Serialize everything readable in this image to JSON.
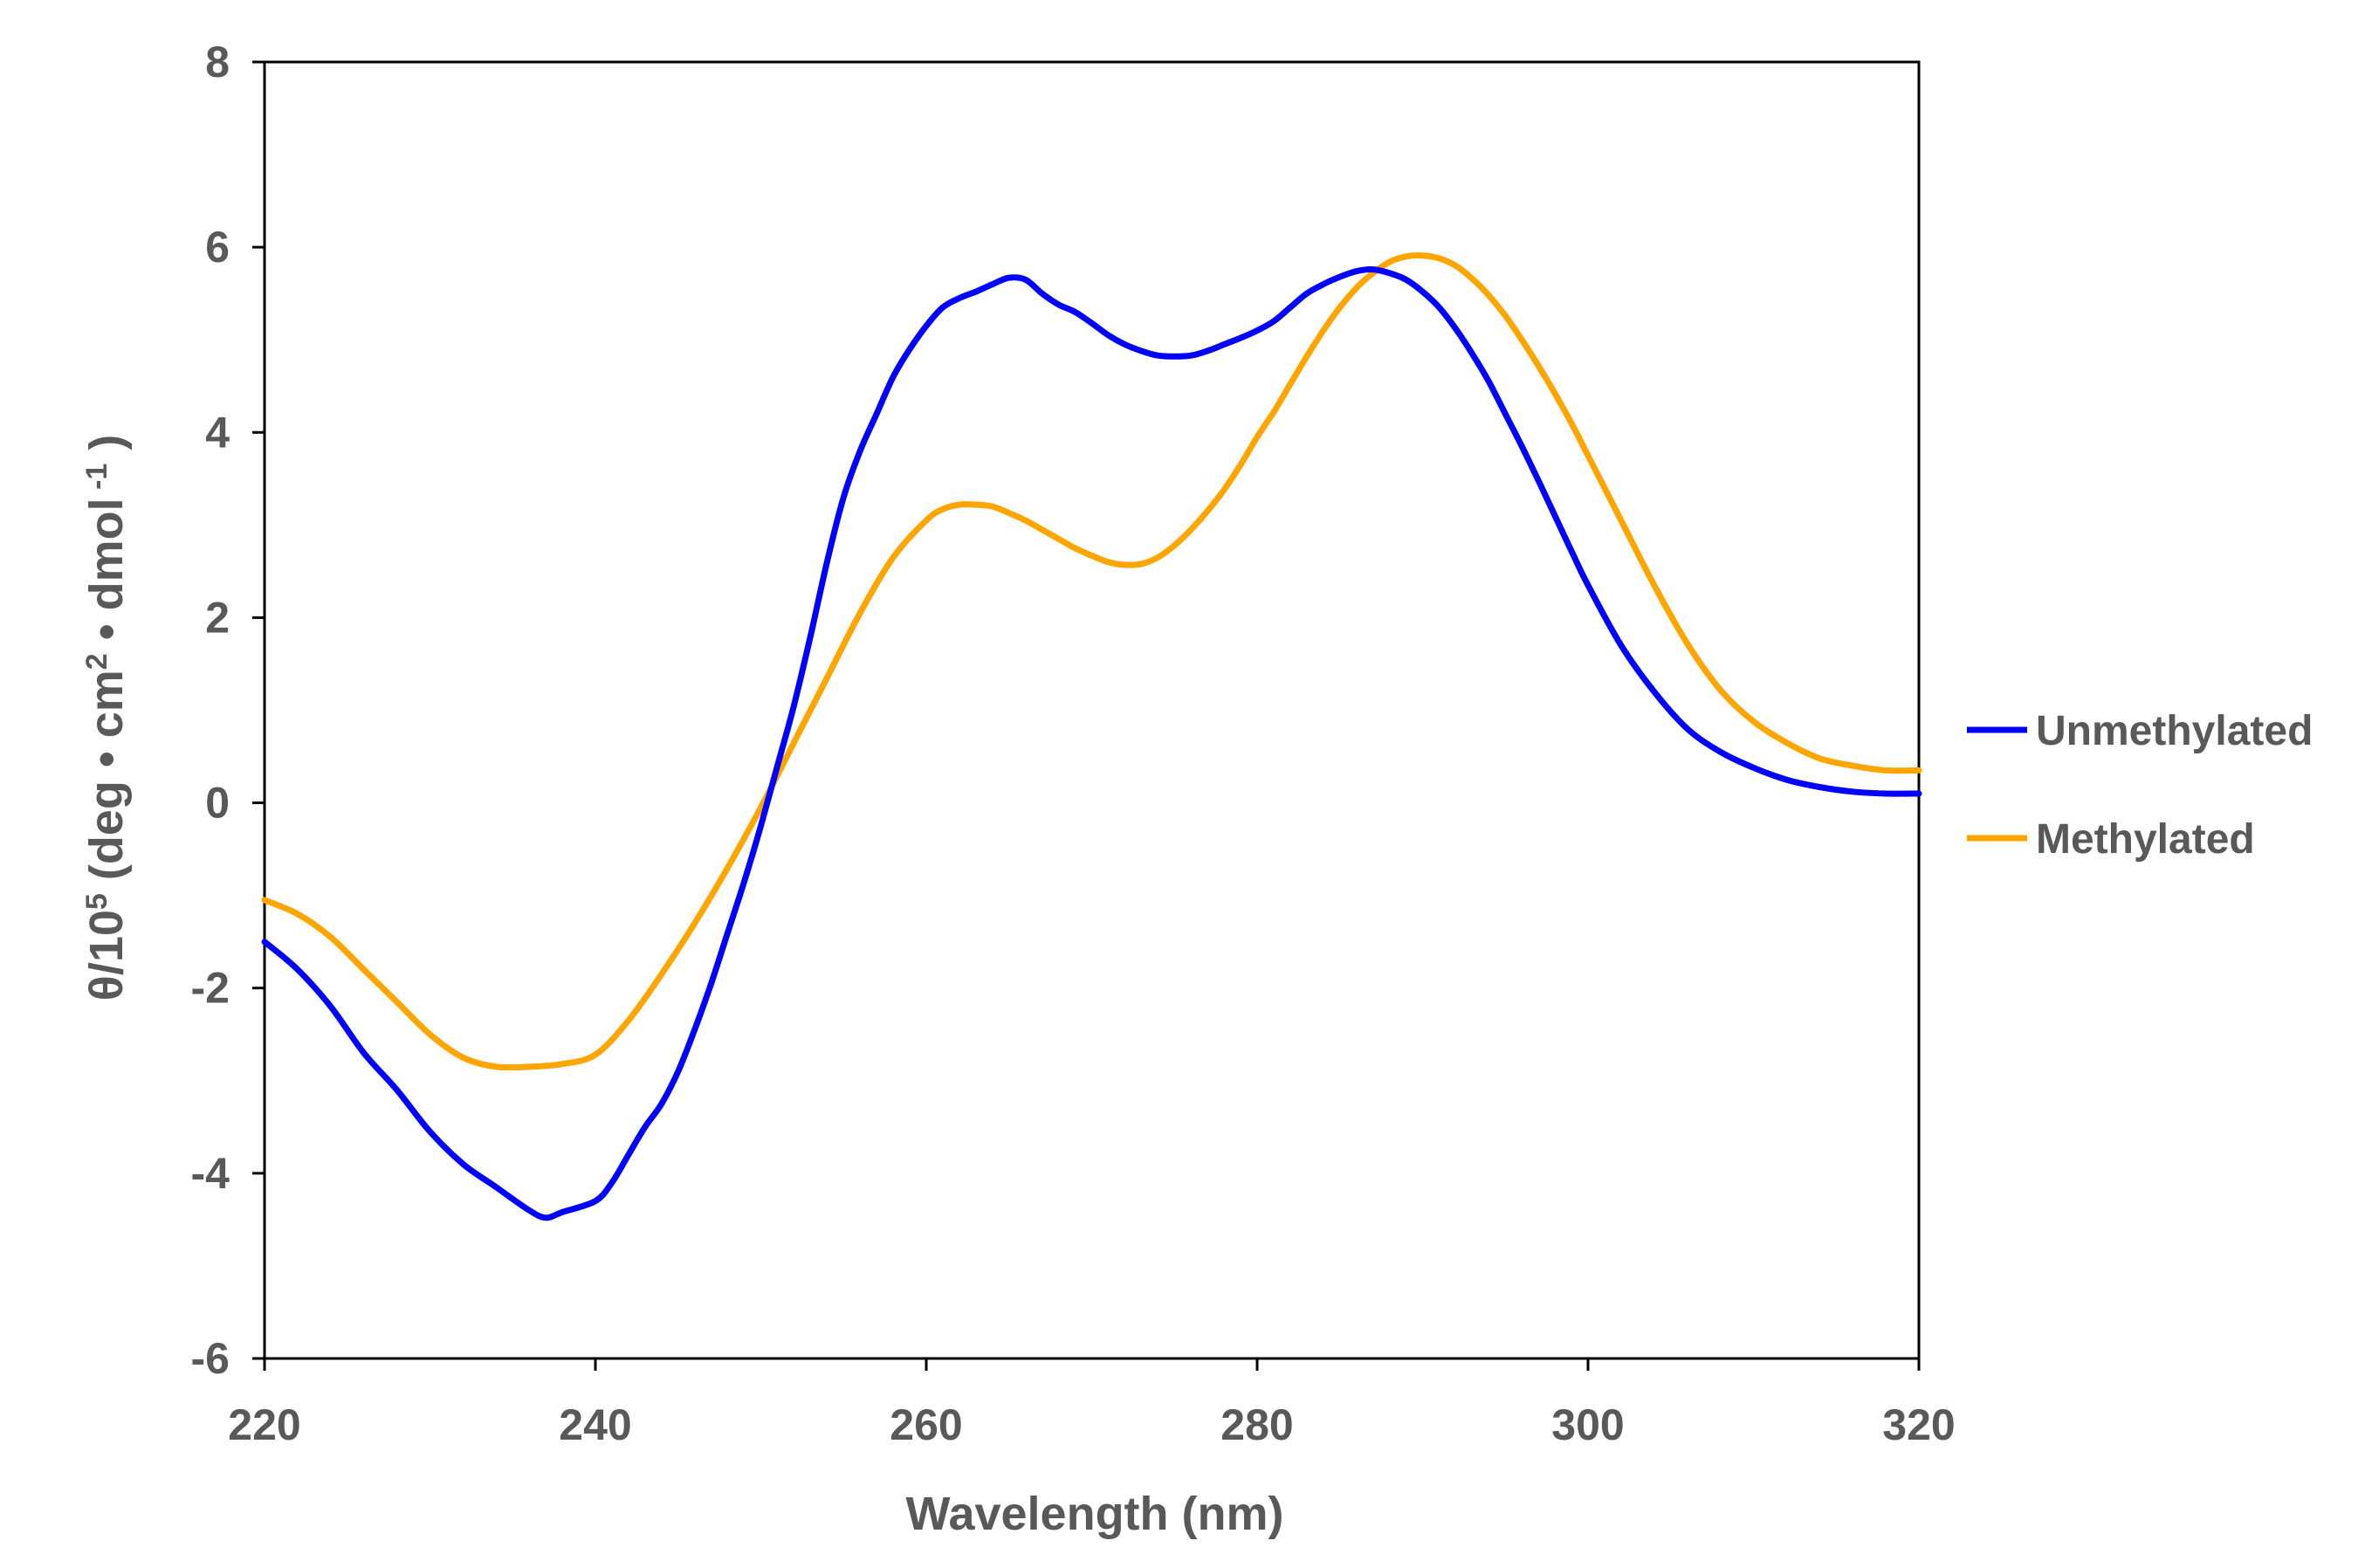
{
  "chart_data": {
    "type": "line",
    "xlabel": "Wavelength (nm)",
    "ylabel": {
      "parts": [
        "θ/10",
        "5",
        " (deg • cm",
        "2",
        " • dmol",
        " -1",
        " )"
      ]
    },
    "xlim": [
      220,
      320
    ],
    "ylim": [
      -6,
      8
    ],
    "xticks": [
      "220",
      "240",
      "260",
      "280",
      "300",
      "320"
    ],
    "yticks": [
      "-6",
      "-4",
      "-2",
      "0",
      "2",
      "4",
      "6",
      "8"
    ],
    "grid": false,
    "legend_position": "right",
    "series": [
      {
        "name": "Unmethylated",
        "color": "#0000FF",
        "x": [
          220,
          222,
          224,
          226,
          228,
          230,
          232,
          234,
          236,
          237,
          238,
          240,
          241,
          242,
          243,
          244,
          245,
          246,
          247,
          248,
          249,
          250,
          251,
          252,
          253,
          254,
          255,
          256,
          257,
          258,
          259,
          260,
          261,
          262,
          263,
          264,
          265,
          266,
          267,
          268,
          269,
          270,
          271,
          272,
          273,
          274,
          275,
          276,
          277,
          278,
          279,
          280,
          281,
          282,
          283,
          284,
          285,
          286,
          287,
          288,
          289,
          290,
          291,
          292,
          293,
          294,
          295,
          296,
          297,
          298,
          299,
          300,
          302,
          304,
          306,
          308,
          310,
          312,
          314,
          316,
          318,
          320
        ],
        "y": [
          -1.5,
          -1.8,
          -2.2,
          -2.7,
          -3.1,
          -3.55,
          -3.9,
          -4.15,
          -4.4,
          -4.48,
          -4.42,
          -4.3,
          -4.1,
          -3.8,
          -3.5,
          -3.25,
          -2.9,
          -2.45,
          -1.95,
          -1.4,
          -0.85,
          -0.25,
          0.4,
          1.05,
          1.8,
          2.6,
          3.3,
          3.8,
          4.2,
          4.6,
          4.9,
          5.15,
          5.35,
          5.45,
          5.52,
          5.6,
          5.67,
          5.65,
          5.5,
          5.38,
          5.3,
          5.18,
          5.05,
          4.95,
          4.88,
          4.83,
          4.82,
          4.83,
          4.88,
          4.95,
          5.02,
          5.1,
          5.2,
          5.35,
          5.5,
          5.6,
          5.68,
          5.74,
          5.76,
          5.72,
          5.65,
          5.52,
          5.35,
          5.12,
          4.85,
          4.55,
          4.2,
          3.85,
          3.48,
          3.1,
          2.72,
          2.35,
          1.7,
          1.2,
          0.8,
          0.55,
          0.38,
          0.25,
          0.17,
          0.12,
          0.1,
          0.1
        ]
      },
      {
        "name": "Methylated",
        "color": "#FFA500",
        "x": [
          220,
          222,
          224,
          226,
          228,
          230,
          232,
          234,
          236,
          238,
          240,
          242,
          244,
          246,
          248,
          250,
          252,
          254,
          256,
          258,
          260,
          261,
          262,
          263,
          264,
          265,
          266,
          267,
          268,
          269,
          270,
          271,
          272,
          273,
          274,
          275,
          276,
          277,
          278,
          279,
          280,
          281,
          282,
          283,
          284,
          285,
          286,
          287,
          288,
          289,
          290,
          291,
          292,
          293,
          294,
          295,
          296,
          297,
          298,
          299,
          300,
          302,
          304,
          306,
          308,
          310,
          312,
          314,
          316,
          318,
          320
        ],
        "y": [
          -1.05,
          -1.2,
          -1.45,
          -1.8,
          -2.15,
          -2.5,
          -2.75,
          -2.85,
          -2.85,
          -2.82,
          -2.72,
          -2.35,
          -1.85,
          -1.3,
          -0.7,
          -0.05,
          0.65,
          1.35,
          2.05,
          2.65,
          3.05,
          3.17,
          3.22,
          3.22,
          3.2,
          3.13,
          3.05,
          2.95,
          2.85,
          2.75,
          2.67,
          2.6,
          2.57,
          2.58,
          2.65,
          2.78,
          2.95,
          3.15,
          3.38,
          3.65,
          3.95,
          4.22,
          4.52,
          4.82,
          5.1,
          5.35,
          5.56,
          5.72,
          5.84,
          5.9,
          5.91,
          5.88,
          5.8,
          5.66,
          5.48,
          5.26,
          5.0,
          4.72,
          4.42,
          4.1,
          3.75,
          3.05,
          2.35,
          1.72,
          1.22,
          0.88,
          0.65,
          0.48,
          0.4,
          0.35,
          0.35
        ]
      }
    ]
  }
}
